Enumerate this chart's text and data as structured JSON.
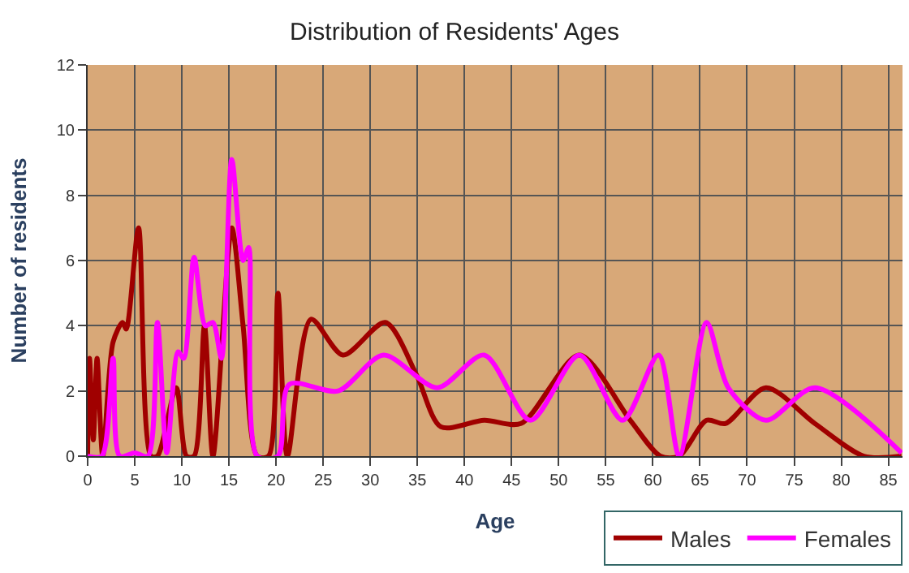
{
  "chart_data": {
    "type": "line",
    "title": "Distribution of Residents' Ages",
    "xlabel": "Age",
    "ylabel": "Number of residents",
    "xlim": [
      0,
      86.5
    ],
    "ylim": [
      0,
      12
    ],
    "xticks": [
      0,
      5,
      10,
      15,
      20,
      25,
      30,
      35,
      40,
      45,
      50,
      55,
      60,
      65,
      70,
      75,
      80,
      85
    ],
    "yticks": [
      0,
      2,
      4,
      6,
      8,
      10,
      12
    ],
    "grid": true,
    "legend": "bottom right",
    "series": [
      {
        "name": "Males",
        "color": "#a00000",
        "x": [
          0,
          0.2,
          0.6,
          1,
          1.6,
          2.7,
          3.7,
          4.1,
          5.4,
          6.7,
          7.4,
          9.4,
          10.5,
          11.3,
          12.4,
          13.3,
          15.3,
          16.5,
          18,
          19.2,
          20.2,
          21.2,
          23.7,
          27.1,
          31.6,
          34.9,
          37.5,
          42.1,
          46,
          52.2,
          57.6,
          60.8,
          62.8,
          65.7,
          67.7,
          72,
          77.2,
          82.4,
          86.4
        ],
        "values": [
          0,
          3,
          0.5,
          3,
          0,
          3.5,
          4.1,
          3.9,
          7,
          0,
          0,
          2.1,
          0,
          0,
          4,
          0,
          7,
          4,
          0,
          0,
          5,
          0,
          4.2,
          3.1,
          4.1,
          2.5,
          0.9,
          1.1,
          1,
          3.1,
          1.1,
          0,
          0,
          1.1,
          1,
          2.1,
          1,
          0,
          0
        ]
      },
      {
        "name": "Females",
        "color": "#ff00ff",
        "x": [
          0,
          1.5,
          2.7,
          3.4,
          5,
          6.4,
          7.4,
          8.4,
          9.6,
          10.2,
          11.3,
          12.5,
          13.3,
          14.2,
          15.3,
          16.5,
          17.1,
          18,
          20.2,
          21.4,
          26.6,
          31.4,
          37.1,
          42.1,
          47,
          52.2,
          56.8,
          60.6,
          62.8,
          65.7,
          68,
          72,
          77.2,
          86.4
        ],
        "values": [
          0,
          0,
          3,
          0,
          0.1,
          0,
          4.1,
          0.1,
          3.2,
          3,
          6.1,
          4,
          4.1,
          3,
          9.1,
          6,
          6.4,
          0,
          0,
          2.2,
          2,
          3.1,
          2.1,
          3.1,
          1.1,
          3.1,
          1.1,
          3.1,
          0,
          4.1,
          2.1,
          1.1,
          2.1,
          0.1
        ]
      }
    ]
  }
}
